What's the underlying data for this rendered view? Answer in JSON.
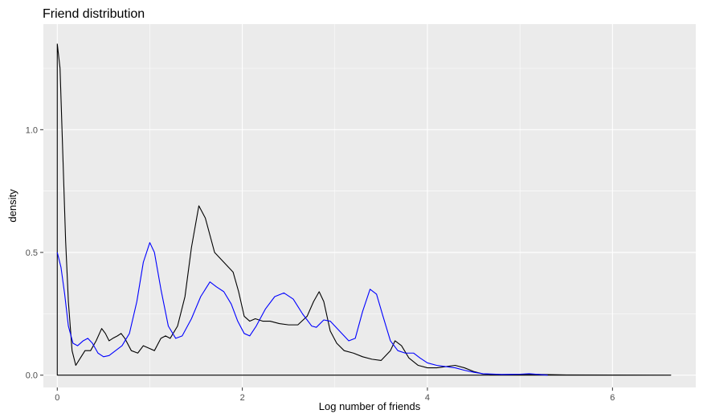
{
  "chart_data": {
    "type": "line",
    "title": "Friend distribution",
    "xlabel": "Log number of friends",
    "ylabel": "density",
    "xlim": [
      -0.15,
      6.9
    ],
    "ylim": [
      -0.05,
      1.43
    ],
    "x_ticks": [
      0,
      2,
      4,
      6
    ],
    "x_tick_labels": [
      "0",
      "2",
      "4",
      "6"
    ],
    "y_ticks": [
      0.0,
      0.5,
      1.0
    ],
    "y_tick_labels": [
      "0.0",
      "0.5",
      "1.0"
    ],
    "grid": true,
    "legend": "none",
    "colors": {
      "panel_background": "#ebebeb",
      "gridline": "#ffffff"
    },
    "series": [
      {
        "color": "#000000",
        "closed_to_baseline": true,
        "points": [
          [
            0.0,
            1.35
          ],
          [
            0.03,
            1.25
          ],
          [
            0.06,
            0.9
          ],
          [
            0.09,
            0.55
          ],
          [
            0.12,
            0.3
          ],
          [
            0.16,
            0.1
          ],
          [
            0.2,
            0.04
          ],
          [
            0.25,
            0.07
          ],
          [
            0.3,
            0.1
          ],
          [
            0.36,
            0.1
          ],
          [
            0.42,
            0.14
          ],
          [
            0.48,
            0.19
          ],
          [
            0.52,
            0.17
          ],
          [
            0.56,
            0.14
          ],
          [
            0.6,
            0.15
          ],
          [
            0.65,
            0.16
          ],
          [
            0.69,
            0.17
          ],
          [
            0.73,
            0.15
          ],
          [
            0.8,
            0.1
          ],
          [
            0.87,
            0.09
          ],
          [
            0.93,
            0.12
          ],
          [
            0.99,
            0.11
          ],
          [
            1.05,
            0.1
          ],
          [
            1.12,
            0.15
          ],
          [
            1.17,
            0.16
          ],
          [
            1.22,
            0.15
          ],
          [
            1.3,
            0.2
          ],
          [
            1.38,
            0.32
          ],
          [
            1.45,
            0.52
          ],
          [
            1.53,
            0.69
          ],
          [
            1.6,
            0.64
          ],
          [
            1.7,
            0.5
          ],
          [
            1.8,
            0.46
          ],
          [
            1.9,
            0.42
          ],
          [
            1.96,
            0.34
          ],
          [
            2.02,
            0.24
          ],
          [
            2.08,
            0.22
          ],
          [
            2.14,
            0.23
          ],
          [
            2.22,
            0.22
          ],
          [
            2.3,
            0.22
          ],
          [
            2.4,
            0.21
          ],
          [
            2.5,
            0.205
          ],
          [
            2.6,
            0.205
          ],
          [
            2.7,
            0.24
          ],
          [
            2.77,
            0.3
          ],
          [
            2.83,
            0.34
          ],
          [
            2.88,
            0.3
          ],
          [
            2.95,
            0.18
          ],
          [
            3.02,
            0.13
          ],
          [
            3.1,
            0.1
          ],
          [
            3.2,
            0.09
          ],
          [
            3.3,
            0.075
          ],
          [
            3.4,
            0.065
          ],
          [
            3.5,
            0.06
          ],
          [
            3.6,
            0.1
          ],
          [
            3.65,
            0.14
          ],
          [
            3.72,
            0.12
          ],
          [
            3.8,
            0.07
          ],
          [
            3.9,
            0.04
          ],
          [
            4.0,
            0.03
          ],
          [
            4.1,
            0.03
          ],
          [
            4.2,
            0.035
          ],
          [
            4.3,
            0.04
          ],
          [
            4.4,
            0.03
          ],
          [
            4.5,
            0.015
          ],
          [
            4.6,
            0.005
          ],
          [
            4.8,
            0.002
          ],
          [
            5.0,
            0.002
          ],
          [
            5.2,
            0.003
          ],
          [
            5.5,
            0.001
          ],
          [
            6.0,
            0.0005
          ],
          [
            6.63,
            0.0
          ]
        ]
      },
      {
        "color": "#0000ff",
        "closed_to_baseline": false,
        "points": [
          [
            0.0,
            0.5
          ],
          [
            0.04,
            0.44
          ],
          [
            0.08,
            0.33
          ],
          [
            0.12,
            0.2
          ],
          [
            0.17,
            0.13
          ],
          [
            0.22,
            0.12
          ],
          [
            0.28,
            0.14
          ],
          [
            0.33,
            0.15
          ],
          [
            0.38,
            0.13
          ],
          [
            0.44,
            0.09
          ],
          [
            0.5,
            0.075
          ],
          [
            0.56,
            0.08
          ],
          [
            0.63,
            0.1
          ],
          [
            0.7,
            0.12
          ],
          [
            0.78,
            0.17
          ],
          [
            0.86,
            0.3
          ],
          [
            0.93,
            0.46
          ],
          [
            1.0,
            0.54
          ],
          [
            1.05,
            0.5
          ],
          [
            1.12,
            0.35
          ],
          [
            1.2,
            0.2
          ],
          [
            1.28,
            0.15
          ],
          [
            1.35,
            0.16
          ],
          [
            1.45,
            0.23
          ],
          [
            1.55,
            0.32
          ],
          [
            1.65,
            0.38
          ],
          [
            1.72,
            0.36
          ],
          [
            1.8,
            0.34
          ],
          [
            1.88,
            0.29
          ],
          [
            1.95,
            0.22
          ],
          [
            2.02,
            0.17
          ],
          [
            2.08,
            0.16
          ],
          [
            2.15,
            0.2
          ],
          [
            2.25,
            0.27
          ],
          [
            2.35,
            0.32
          ],
          [
            2.45,
            0.335
          ],
          [
            2.55,
            0.31
          ],
          [
            2.65,
            0.25
          ],
          [
            2.75,
            0.2
          ],
          [
            2.8,
            0.195
          ],
          [
            2.88,
            0.225
          ],
          [
            2.95,
            0.22
          ],
          [
            3.05,
            0.18
          ],
          [
            3.15,
            0.14
          ],
          [
            3.22,
            0.15
          ],
          [
            3.3,
            0.26
          ],
          [
            3.38,
            0.35
          ],
          [
            3.45,
            0.33
          ],
          [
            3.52,
            0.24
          ],
          [
            3.6,
            0.14
          ],
          [
            3.68,
            0.1
          ],
          [
            3.76,
            0.09
          ],
          [
            3.85,
            0.09
          ],
          [
            3.92,
            0.07
          ],
          [
            4.0,
            0.05
          ],
          [
            4.1,
            0.04
          ],
          [
            4.2,
            0.035
          ],
          [
            4.3,
            0.03
          ],
          [
            4.4,
            0.02
          ],
          [
            4.5,
            0.012
          ],
          [
            4.6,
            0.006
          ],
          [
            4.8,
            0.003
          ],
          [
            5.0,
            0.004
          ],
          [
            5.1,
            0.006
          ],
          [
            5.2,
            0.003
          ],
          [
            5.3,
            0.0
          ]
        ]
      }
    ]
  }
}
